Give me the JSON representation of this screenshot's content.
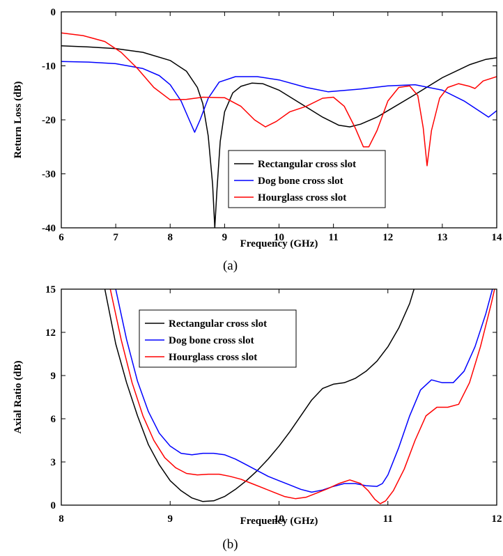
{
  "chart_data": [
    {
      "type": "line",
      "panel_label": "(a)",
      "xlabel": "Frequency (GHz)",
      "ylabel": "Return Loss (dB)",
      "xlim": [
        6,
        14
      ],
      "ylim": [
        -40,
        0
      ],
      "xticks": [
        6,
        7,
        8,
        9,
        10,
        11,
        12,
        13,
        14
      ],
      "yticks": [
        0,
        -10,
        -20,
        -30,
        -40
      ],
      "legend_position": "center-right",
      "series": [
        {
          "name": "Rectangular cross slot",
          "color": "#000000",
          "points": [
            [
              6,
              -6.3
            ],
            [
              6.5,
              -6.5
            ],
            [
              7,
              -6.8
            ],
            [
              7.5,
              -7.5
            ],
            [
              8,
              -9
            ],
            [
              8.3,
              -11
            ],
            [
              8.5,
              -14
            ],
            [
              8.6,
              -17
            ],
            [
              8.7,
              -23
            ],
            [
              8.78,
              -32
            ],
            [
              8.82,
              -40
            ],
            [
              8.86,
              -33
            ],
            [
              8.92,
              -24
            ],
            [
              9,
              -18.5
            ],
            [
              9.15,
              -15
            ],
            [
              9.3,
              -13.8
            ],
            [
              9.5,
              -13.2
            ],
            [
              9.7,
              -13.3
            ],
            [
              10,
              -14.5
            ],
            [
              10.4,
              -17
            ],
            [
              10.8,
              -19.5
            ],
            [
              11.1,
              -21
            ],
            [
              11.3,
              -21.3
            ],
            [
              11.5,
              -20.8
            ],
            [
              11.8,
              -19.5
            ],
            [
              12,
              -18.3
            ],
            [
              12.5,
              -15.3
            ],
            [
              13,
              -12.2
            ],
            [
              13.5,
              -9.8
            ],
            [
              13.8,
              -8.8
            ],
            [
              14,
              -8.5
            ]
          ]
        },
        {
          "name": "Dog bone cross slot",
          "color": "#0000ff",
          "points": [
            [
              6,
              -9.2
            ],
            [
              6.5,
              -9.3
            ],
            [
              7,
              -9.6
            ],
            [
              7.5,
              -10.5
            ],
            [
              7.8,
              -11.8
            ],
            [
              8,
              -13.5
            ],
            [
              8.2,
              -16.5
            ],
            [
              8.35,
              -20
            ],
            [
              8.45,
              -22.3
            ],
            [
              8.55,
              -20
            ],
            [
              8.7,
              -16
            ],
            [
              8.9,
              -13
            ],
            [
              9.2,
              -12
            ],
            [
              9.6,
              -12
            ],
            [
              10,
              -12.6
            ],
            [
              10.5,
              -14
            ],
            [
              10.9,
              -14.8
            ],
            [
              11.5,
              -14.3
            ],
            [
              12,
              -13.7
            ],
            [
              12.5,
              -13.5
            ],
            [
              13,
              -14.5
            ],
            [
              13.4,
              -16.5
            ],
            [
              13.7,
              -18.5
            ],
            [
              13.85,
              -19.5
            ],
            [
              14,
              -18.3
            ]
          ]
        },
        {
          "name": "Hourglass cross slot",
          "color": "#ff0000",
          "points": [
            [
              6,
              -3.9
            ],
            [
              6.4,
              -4.4
            ],
            [
              6.8,
              -5.5
            ],
            [
              7.1,
              -7.5
            ],
            [
              7.4,
              -10.5
            ],
            [
              7.7,
              -14
            ],
            [
              8,
              -16.3
            ],
            [
              8.3,
              -16.2
            ],
            [
              8.6,
              -15.8
            ],
            [
              9,
              -15.9
            ],
            [
              9.3,
              -17.5
            ],
            [
              9.55,
              -20
            ],
            [
              9.75,
              -21.3
            ],
            [
              9.95,
              -20.3
            ],
            [
              10.2,
              -18.5
            ],
            [
              10.5,
              -17.5
            ],
            [
              10.8,
              -16
            ],
            [
              11,
              -15.8
            ],
            [
              11.2,
              -17.5
            ],
            [
              11.4,
              -21.5
            ],
            [
              11.55,
              -25
            ],
            [
              11.65,
              -25
            ],
            [
              11.8,
              -22
            ],
            [
              12,
              -16.5
            ],
            [
              12.2,
              -14
            ],
            [
              12.4,
              -13.7
            ],
            [
              12.55,
              -15.5
            ],
            [
              12.65,
              -21.5
            ],
            [
              12.72,
              -28.5
            ],
            [
              12.8,
              -22
            ],
            [
              12.95,
              -16
            ],
            [
              13.1,
              -14
            ],
            [
              13.3,
              -13.3
            ],
            [
              13.5,
              -13.8
            ],
            [
              13.6,
              -14.2
            ],
            [
              13.75,
              -12.8
            ],
            [
              14,
              -12
            ]
          ]
        }
      ]
    },
    {
      "type": "line",
      "panel_label": "(b)",
      "xlabel": "Frequency (GHz)",
      "ylabel": "Axial Ratio (dB)",
      "xlim": [
        8,
        12
      ],
      "ylim": [
        0,
        15
      ],
      "xticks": [
        8,
        9,
        10,
        11,
        12
      ],
      "yticks": [
        0,
        3,
        6,
        9,
        12,
        15
      ],
      "legend_position": "upper-center",
      "series": [
        {
          "name": "Rectangular cross slot",
          "color": "#000000",
          "points": [
            [
              8.4,
              15
            ],
            [
              8.5,
              11.2
            ],
            [
              8.6,
              8.5
            ],
            [
              8.7,
              6.2
            ],
            [
              8.8,
              4.2
            ],
            [
              8.9,
              2.8
            ],
            [
              9,
              1.7
            ],
            [
              9.1,
              1
            ],
            [
              9.2,
              0.5
            ],
            [
              9.3,
              0.25
            ],
            [
              9.4,
              0.3
            ],
            [
              9.5,
              0.6
            ],
            [
              9.6,
              1.1
            ],
            [
              9.7,
              1.7
            ],
            [
              9.8,
              2.4
            ],
            [
              9.9,
              3.2
            ],
            [
              10,
              4.1
            ],
            [
              10.1,
              5.1
            ],
            [
              10.2,
              6.2
            ],
            [
              10.3,
              7.3
            ],
            [
              10.4,
              8.1
            ],
            [
              10.5,
              8.4
            ],
            [
              10.6,
              8.5
            ],
            [
              10.7,
              8.8
            ],
            [
              10.8,
              9.3
            ],
            [
              10.9,
              10
            ],
            [
              11,
              11
            ],
            [
              11.1,
              12.3
            ],
            [
              11.2,
              14
            ],
            [
              11.24,
              15
            ]
          ]
        },
        {
          "name": "Dog bone cross slot",
          "color": "#0000ff",
          "points": [
            [
              8.5,
              15
            ],
            [
              8.6,
              11.5
            ],
            [
              8.7,
              8.6
            ],
            [
              8.8,
              6.5
            ],
            [
              8.9,
              5
            ],
            [
              9,
              4.1
            ],
            [
              9.1,
              3.6
            ],
            [
              9.2,
              3.5
            ],
            [
              9.3,
              3.6
            ],
            [
              9.4,
              3.6
            ],
            [
              9.5,
              3.5
            ],
            [
              9.6,
              3.2
            ],
            [
              9.7,
              2.8
            ],
            [
              9.8,
              2.4
            ],
            [
              9.9,
              2
            ],
            [
              10,
              1.7
            ],
            [
              10.1,
              1.4
            ],
            [
              10.2,
              1.1
            ],
            [
              10.3,
              0.9
            ],
            [
              10.4,
              1.05
            ],
            [
              10.5,
              1.3
            ],
            [
              10.6,
              1.5
            ],
            [
              10.7,
              1.5
            ],
            [
              10.8,
              1.35
            ],
            [
              10.9,
              1.3
            ],
            [
              10.95,
              1.5
            ],
            [
              11,
              2.1
            ],
            [
              11.1,
              4
            ],
            [
              11.2,
              6.2
            ],
            [
              11.3,
              8
            ],
            [
              11.4,
              8.7
            ],
            [
              11.5,
              8.5
            ],
            [
              11.6,
              8.5
            ],
            [
              11.7,
              9.3
            ],
            [
              11.8,
              11
            ],
            [
              11.9,
              13.3
            ],
            [
              11.96,
              15
            ]
          ]
        },
        {
          "name": "Hourglass cross slot",
          "color": "#ff0000",
          "points": [
            [
              8.45,
              15
            ],
            [
              8.55,
              11.5
            ],
            [
              8.65,
              8.5
            ],
            [
              8.75,
              6.2
            ],
            [
              8.85,
              4.5
            ],
            [
              8.95,
              3.3
            ],
            [
              9.05,
              2.6
            ],
            [
              9.15,
              2.2
            ],
            [
              9.25,
              2.1
            ],
            [
              9.35,
              2.15
            ],
            [
              9.45,
              2.15
            ],
            [
              9.55,
              2
            ],
            [
              9.65,
              1.8
            ],
            [
              9.75,
              1.5
            ],
            [
              9.85,
              1.2
            ],
            [
              9.95,
              0.9
            ],
            [
              10.05,
              0.6
            ],
            [
              10.15,
              0.45
            ],
            [
              10.25,
              0.55
            ],
            [
              10.35,
              0.85
            ],
            [
              10.45,
              1.15
            ],
            [
              10.55,
              1.5
            ],
            [
              10.65,
              1.75
            ],
            [
              10.75,
              1.5
            ],
            [
              10.82,
              1
            ],
            [
              10.88,
              0.4
            ],
            [
              10.93,
              0.1
            ],
            [
              10.98,
              0.3
            ],
            [
              11.05,
              1
            ],
            [
              11.15,
              2.5
            ],
            [
              11.25,
              4.5
            ],
            [
              11.35,
              6.2
            ],
            [
              11.45,
              6.8
            ],
            [
              11.55,
              6.8
            ],
            [
              11.65,
              7
            ],
            [
              11.75,
              8.5
            ],
            [
              11.85,
              11
            ],
            [
              11.95,
              14
            ],
            [
              11.98,
              15
            ]
          ]
        }
      ]
    }
  ]
}
